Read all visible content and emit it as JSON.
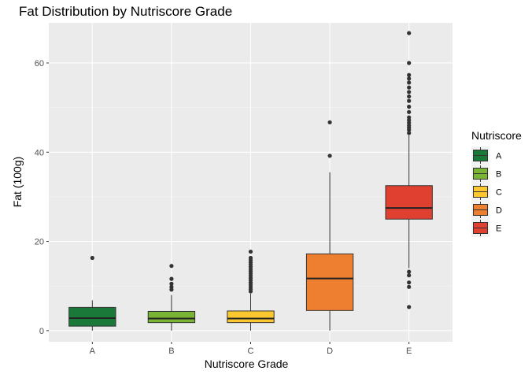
{
  "chart_data": {
    "type": "boxplot",
    "title": "Fat Distribution by Nutriscore Grade",
    "xlabel": "Nutriscore Grade",
    "ylabel": "Fat (100g)",
    "ylim": [
      -2.5,
      69
    ],
    "yticks": [
      0,
      20,
      40,
      60
    ],
    "grid": true,
    "legend": {
      "title": "Nutriscore",
      "placement": "right"
    },
    "categories": [
      "A",
      "B",
      "C",
      "D",
      "E"
    ],
    "colors": [
      "#1a7838",
      "#7ab435",
      "#fdc82f",
      "#ee7e30",
      "#e0402f"
    ],
    "boxes": [
      {
        "name": "A",
        "min": 0.0,
        "q1": 1.0,
        "median": 2.8,
        "q3": 5.2,
        "max": 6.8,
        "outliers": [
          16.3
        ]
      },
      {
        "name": "B",
        "min": 0.0,
        "q1": 1.8,
        "median": 2.7,
        "q3": 4.3,
        "max": 8.0,
        "outliers": [
          9.2,
          9.8,
          10.5,
          11.6,
          14.5
        ]
      },
      {
        "name": "C",
        "min": 0.0,
        "q1": 1.8,
        "median": 2.7,
        "q3": 4.4,
        "max": 8.3,
        "outliers": [
          8.8,
          9.3,
          9.8,
          10.3,
          10.8,
          11.3,
          11.8,
          12.3,
          12.8,
          13.3,
          13.8,
          14.3,
          14.8,
          15.3,
          15.8,
          16.3,
          17.7
        ]
      },
      {
        "name": "D",
        "min": 0.0,
        "q1": 4.5,
        "median": 11.7,
        "q3": 17.2,
        "max": 35.5,
        "outliers": [
          39.2,
          46.7
        ]
      },
      {
        "name": "E",
        "min": 14.0,
        "q1": 25.0,
        "median": 27.5,
        "q3": 32.5,
        "max": 43.8,
        "outliers": [
          5.3,
          9.8,
          10.8,
          12.4,
          13.2,
          44.3,
          45.0,
          45.5,
          46.0,
          46.6,
          47.2,
          47.8,
          49.0,
          50.2,
          51.5,
          52.5,
          53.5,
          54.5,
          55.6,
          56.5,
          57.3,
          60.0,
          66.7
        ]
      }
    ]
  }
}
